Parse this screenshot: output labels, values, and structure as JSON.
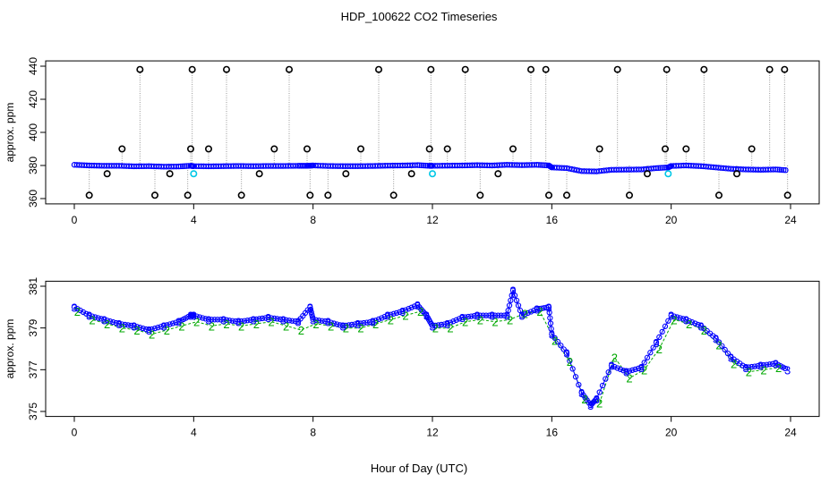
{
  "title": "HDP_100622  CO2 Timeseries",
  "colors": {
    "blue": "#0000ff",
    "cyan": "#00c8e6",
    "green": "#00a800",
    "grey": "#9a9a9a",
    "black": "#000000"
  },
  "chart_data": [
    {
      "type": "scatter",
      "ylabel": "approx. ppm",
      "xlim": [
        0,
        24
      ],
      "ylim": [
        360,
        440
      ],
      "xticks": [
        0,
        4,
        8,
        12,
        16,
        20,
        24
      ],
      "yticks": [
        360,
        380,
        400,
        420,
        440
      ],
      "xtick_labels": [
        "0",
        "4",
        "8",
        "12",
        "16",
        "20",
        "24"
      ],
      "ytick_labels": [
        "360",
        "380",
        "400",
        "420",
        "440"
      ],
      "series": [
        {
          "marker": "blue-circle",
          "x": [
            0.0,
            0.5,
            1.0,
            1.5,
            2.0,
            2.5,
            3.0,
            3.5,
            3.9,
            4.0,
            4.5,
            5.0,
            5.5,
            6.0,
            6.5,
            7.0,
            7.5,
            7.8,
            8.0,
            8.5,
            9.0,
            9.5,
            10.0,
            10.5,
            11.0,
            11.5,
            11.9,
            12.0,
            12.5,
            13.0,
            13.5,
            14.0,
            14.5,
            15.0,
            15.5,
            15.9,
            16.0,
            16.5,
            17.0,
            17.5,
            18.0,
            18.5,
            19.0,
            19.5,
            19.9,
            20.0,
            20.5,
            21.0,
            21.5,
            22.0,
            22.5,
            23.0,
            23.5,
            23.9
          ],
          "y": [
            380.4,
            380.0,
            379.8,
            379.8,
            379.5,
            379.6,
            379.3,
            379.4,
            379.8,
            379.6,
            379.5,
            379.6,
            379.7,
            379.6,
            379.7,
            379.7,
            379.8,
            379.8,
            380.0,
            379.7,
            379.6,
            379.6,
            379.7,
            379.9,
            380.0,
            380.2,
            379.8,
            379.8,
            379.9,
            380.0,
            380.2,
            380.0,
            380.4,
            380.2,
            380.4,
            380.0,
            378.8,
            378.4,
            376.6,
            376.4,
            377.4,
            377.5,
            377.6,
            378.4,
            378.8,
            379.7,
            380.0,
            379.6,
            378.8,
            378.0,
            377.6,
            377.4,
            377.6,
            377.1
          ]
        },
        {
          "marker": "black-circle-spike",
          "x": [
            0.5,
            1.1,
            1.6,
            2.2,
            2.7,
            3.2,
            3.8,
            3.9,
            3.95,
            4.5,
            5.1,
            5.6,
            6.2,
            6.7,
            7.2,
            7.8,
            7.9,
            8.5,
            9.1,
            9.6,
            10.2,
            10.7,
            11.3,
            11.9,
            11.95,
            12.5,
            13.1,
            13.6,
            14.2,
            14.7,
            15.3,
            15.8,
            15.9,
            16.5,
            17.6,
            18.2,
            18.6,
            19.2,
            19.8,
            19.85,
            20.5,
            21.1,
            21.6,
            22.2,
            22.7,
            23.3,
            23.8,
            23.9
          ],
          "y": [
            362,
            375,
            390,
            438,
            362,
            375,
            362,
            390,
            438,
            390,
            438,
            362,
            375,
            390,
            438,
            390,
            362,
            362,
            375,
            390,
            438,
            362,
            375,
            390,
            438,
            390,
            438,
            362,
            375,
            390,
            438,
            438,
            362,
            362,
            390,
            438,
            362,
            375,
            390,
            438,
            390,
            438,
            362,
            375,
            390,
            438,
            438,
            362
          ]
        },
        {
          "marker": "cyan-circle",
          "x": [
            4.0,
            12.0,
            19.9
          ],
          "y": [
            375,
            375,
            375
          ]
        }
      ]
    },
    {
      "type": "line",
      "ylabel": "approx. ppm",
      "xlabel": "Hour of Day (UTC)",
      "xlim": [
        0,
        24
      ],
      "ylim": [
        375,
        381
      ],
      "xticks": [
        0,
        4,
        8,
        12,
        16,
        20,
        24
      ],
      "yticks": [
        375,
        377,
        379,
        381
      ],
      "xtick_labels": [
        "0",
        "4",
        "8",
        "12",
        "16",
        "20",
        "24"
      ],
      "ytick_labels": [
        "375",
        "377",
        "379",
        "381"
      ],
      "series": [
        {
          "marker": "3",
          "color": "blue",
          "x": [
            0.0,
            0.5,
            1.0,
            1.5,
            2.0,
            2.5,
            3.0,
            3.5,
            3.9,
            4.0,
            4.5,
            5.0,
            5.5,
            6.0,
            6.5,
            7.0,
            7.5,
            7.9,
            8.0,
            8.5,
            9.0,
            9.5,
            10.0,
            10.5,
            11.0,
            11.5,
            11.8,
            12.0,
            12.5,
            13.0,
            13.5,
            14.0,
            14.5,
            14.7,
            15.0,
            15.5,
            15.9,
            16.0,
            16.5,
            17.0,
            17.3,
            17.5,
            18.0,
            18.5,
            19.0,
            19.5,
            20.0,
            20.5,
            21.0,
            21.5,
            22.0,
            22.5,
            23.0,
            23.5,
            23.9
          ],
          "y": [
            380.0,
            379.6,
            379.4,
            379.2,
            379.1,
            378.9,
            379.1,
            379.3,
            379.6,
            379.6,
            379.4,
            379.4,
            379.3,
            379.4,
            379.5,
            379.4,
            379.3,
            380.0,
            379.4,
            379.3,
            379.1,
            379.2,
            379.3,
            379.6,
            379.8,
            380.1,
            379.6,
            379.1,
            379.2,
            379.5,
            379.6,
            379.6,
            379.6,
            380.8,
            379.6,
            379.9,
            380.0,
            378.7,
            377.8,
            375.9,
            375.3,
            375.6,
            377.2,
            376.9,
            377.1,
            378.3,
            379.6,
            379.4,
            379.1,
            378.5,
            377.6,
            377.1,
            377.2,
            377.3,
            377.0
          ]
        },
        {
          "marker": "2",
          "color": "green",
          "x": [
            0.1,
            0.6,
            1.1,
            1.6,
            2.1,
            2.6,
            3.1,
            3.6,
            4.1,
            4.6,
            5.1,
            5.6,
            6.1,
            6.6,
            7.1,
            7.6,
            8.1,
            8.6,
            9.1,
            9.6,
            10.1,
            10.6,
            11.1,
            11.6,
            12.1,
            12.6,
            13.1,
            13.6,
            14.1,
            14.6,
            15.1,
            15.6,
            16.1,
            16.6,
            17.1,
            17.6,
            18.1,
            18.6,
            19.1,
            19.6,
            20.1,
            20.6,
            21.1,
            21.6,
            22.1,
            22.6,
            23.1,
            23.6
          ],
          "y": [
            379.8,
            379.4,
            379.2,
            379.0,
            378.9,
            378.7,
            378.9,
            379.1,
            379.3,
            379.1,
            379.2,
            379.1,
            379.2,
            379.3,
            379.1,
            378.9,
            379.2,
            379.1,
            379.0,
            379.0,
            379.2,
            379.4,
            379.6,
            379.8,
            379.0,
            379.0,
            379.3,
            379.4,
            379.3,
            379.4,
            379.7,
            379.8,
            378.4,
            377.4,
            375.6,
            375.4,
            377.6,
            376.6,
            377.0,
            378.0,
            379.4,
            379.2,
            378.9,
            378.2,
            377.3,
            376.9,
            377.0,
            377.1
          ]
        }
      ]
    }
  ]
}
